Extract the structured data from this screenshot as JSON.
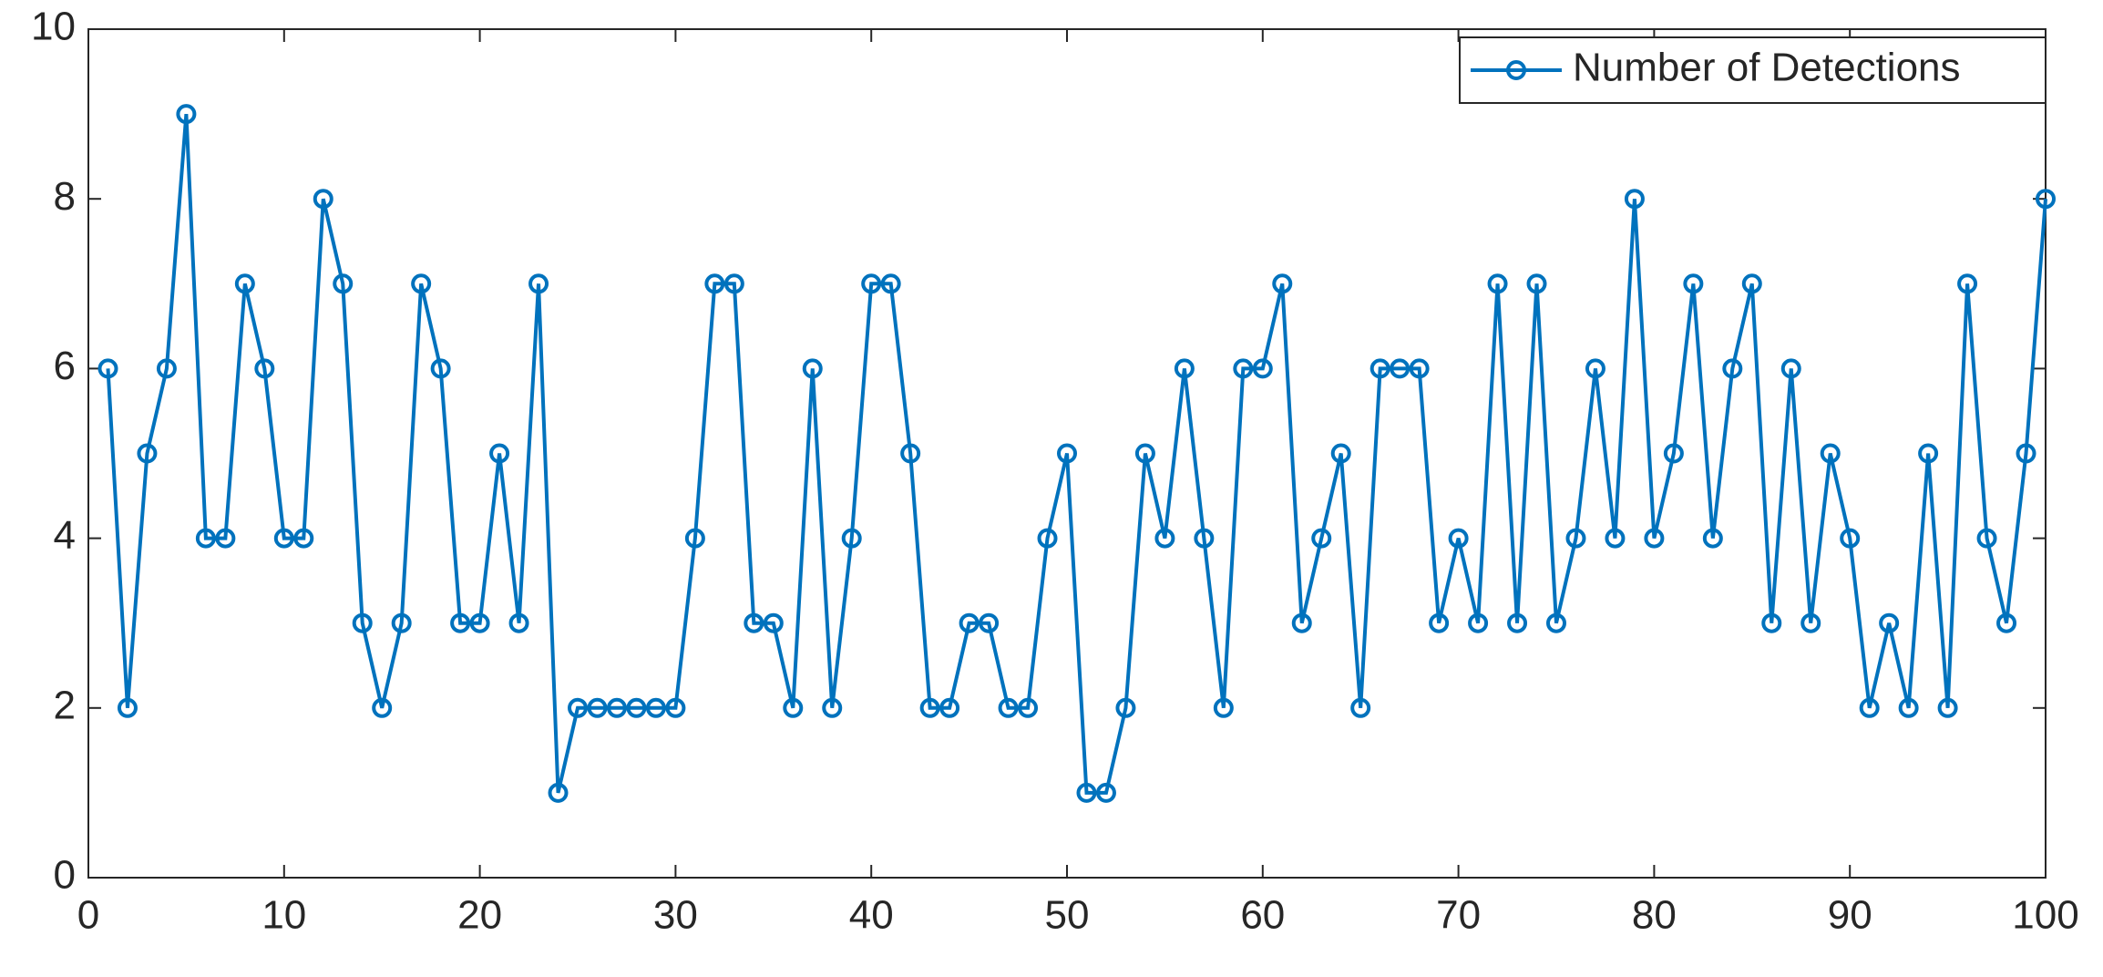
{
  "chart_data": {
    "type": "line",
    "x": [
      1,
      2,
      3,
      4,
      5,
      6,
      7,
      8,
      9,
      10,
      11,
      12,
      13,
      14,
      15,
      16,
      17,
      18,
      19,
      20,
      21,
      22,
      23,
      24,
      25,
      26,
      27,
      28,
      29,
      30,
      31,
      32,
      33,
      34,
      35,
      36,
      37,
      38,
      39,
      40,
      41,
      42,
      43,
      44,
      45,
      46,
      47,
      48,
      49,
      50,
      51,
      52,
      53,
      54,
      55,
      56,
      57,
      58,
      59,
      60,
      61,
      62,
      63,
      64,
      65,
      66,
      67,
      68,
      69,
      70,
      71,
      72,
      73,
      74,
      75,
      76,
      77,
      78,
      79,
      80,
      81,
      82,
      83,
      84,
      85,
      86,
      87,
      88,
      89,
      90,
      91,
      92,
      93,
      94,
      95,
      96,
      97,
      98,
      99,
      100
    ],
    "series": [
      {
        "name": "Number of Detections",
        "color": "#0072bd",
        "values": [
          6,
          2,
          5,
          6,
          9,
          4,
          4,
          7,
          6,
          4,
          4,
          8,
          7,
          3,
          2,
          3,
          7,
          6,
          3,
          3,
          5,
          3,
          7,
          1,
          2,
          2,
          2,
          2,
          2,
          2,
          4,
          7,
          7,
          3,
          3,
          2,
          6,
          2,
          4,
          7,
          7,
          5,
          2,
          2,
          3,
          3,
          2,
          2,
          4,
          5,
          1,
          1,
          2,
          5,
          4,
          6,
          4,
          2,
          6,
          6,
          7,
          3,
          4,
          5,
          2,
          6,
          6,
          6,
          3,
          4,
          3,
          7,
          3,
          7,
          3,
          4,
          6,
          4,
          8,
          4,
          5,
          7,
          4,
          6,
          7,
          3,
          6,
          3,
          5,
          4,
          2,
          3,
          2,
          5,
          2,
          7,
          4,
          3,
          5,
          8
        ]
      }
    ],
    "xlim": [
      0,
      100
    ],
    "xticks": [
      0,
      10,
      20,
      30,
      40,
      50,
      60,
      70,
      80,
      90,
      100
    ],
    "ylim": [
      0,
      10
    ],
    "yticks": [
      0,
      2,
      4,
      6,
      8,
      10
    ],
    "grid": false,
    "legend": "upper right",
    "marker": "circle"
  }
}
